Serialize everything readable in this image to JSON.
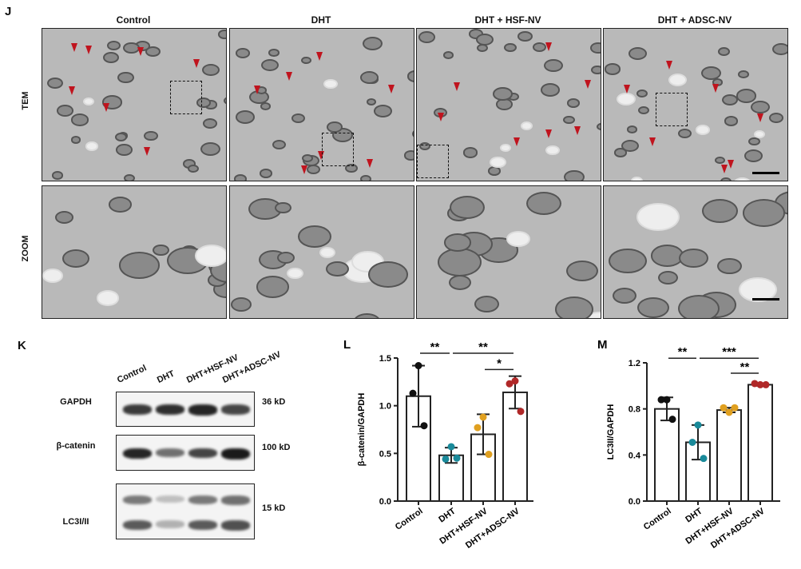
{
  "panel_j": {
    "label": "J",
    "columns": [
      "Control",
      "DHT",
      "DHT + HSF-NV",
      "DHT + ADSC-NV"
    ],
    "rows": [
      "TEM",
      "ZOOM"
    ]
  },
  "panel_k": {
    "label": "K",
    "lanes": [
      "Control",
      "DHT",
      "DHT+HSF-NV",
      "DHT+ADSC-NV"
    ],
    "blots": [
      {
        "protein": "GAPDH",
        "size": "36 kD",
        "band_intensity": [
          0.85,
          0.9,
          0.95,
          0.8
        ]
      },
      {
        "protein": "β-catenin",
        "size": "100 kD",
        "band_intensity": [
          0.95,
          0.6,
          0.8,
          1.0
        ]
      },
      {
        "protein": "LC3I/II",
        "size": "15 kD",
        "band_intensity": [
          0.7,
          0.3,
          0.7,
          0.75
        ]
      }
    ]
  },
  "colors": {
    "Control": "#111111",
    "DHT": "#1a8a9a",
    "DHT+HSF-NV": "#e0a020",
    "DHT+ADSC-NV": "#b02828",
    "arrow": "#c0141e"
  },
  "chart_data": [
    {
      "panel": "L",
      "type": "bar",
      "ylabel": "β-catenin/GAPDH",
      "categories": [
        "Control",
        "DHT",
        "DHT+HSF-NV",
        "DHT+ADSC-NV"
      ],
      "ylim": [
        0,
        1.5
      ],
      "yticks": [
        "0.0",
        "0.5",
        "1.0",
        "1.5"
      ],
      "means": [
        1.1,
        0.48,
        0.7,
        1.14
      ],
      "sd": [
        0.32,
        0.08,
        0.21,
        0.17
      ],
      "points": [
        [
          1.42,
          1.13,
          0.79
        ],
        [
          0.57,
          0.44,
          0.45
        ],
        [
          0.88,
          0.77,
          0.49
        ],
        [
          1.26,
          1.23,
          0.94
        ]
      ],
      "significance": [
        {
          "from": 0,
          "to": 1,
          "label": "**",
          "level": 1.55
        },
        {
          "from": 1,
          "to": 3,
          "label": "**",
          "level": 1.55
        },
        {
          "from": 2,
          "to": 3,
          "label": "*",
          "level": 1.38
        }
      ]
    },
    {
      "panel": "M",
      "type": "bar",
      "ylabel": "LC3II/GAPDH",
      "categories": [
        "Control",
        "DHT",
        "DHT+HSF-NV",
        "DHT+ADSC-NV"
      ],
      "ylim": [
        0,
        1.2
      ],
      "yticks": [
        "0.0",
        "0.4",
        "0.8",
        "1.2"
      ],
      "means": [
        0.8,
        0.51,
        0.79,
        1.01
      ],
      "sd": [
        0.1,
        0.15,
        0.02,
        0.01
      ],
      "points": [
        [
          0.88,
          0.88,
          0.71
        ],
        [
          0.66,
          0.51,
          0.37
        ],
        [
          0.77,
          0.81,
          0.81
        ],
        [
          1.01,
          1.02,
          1.01
        ]
      ],
      "significance": [
        {
          "from": 0,
          "to": 1,
          "label": "**",
          "level": 1.24
        },
        {
          "from": 1,
          "to": 3,
          "label": "***",
          "level": 1.24
        },
        {
          "from": 2,
          "to": 3,
          "label": "**",
          "level": 1.11
        }
      ]
    }
  ]
}
